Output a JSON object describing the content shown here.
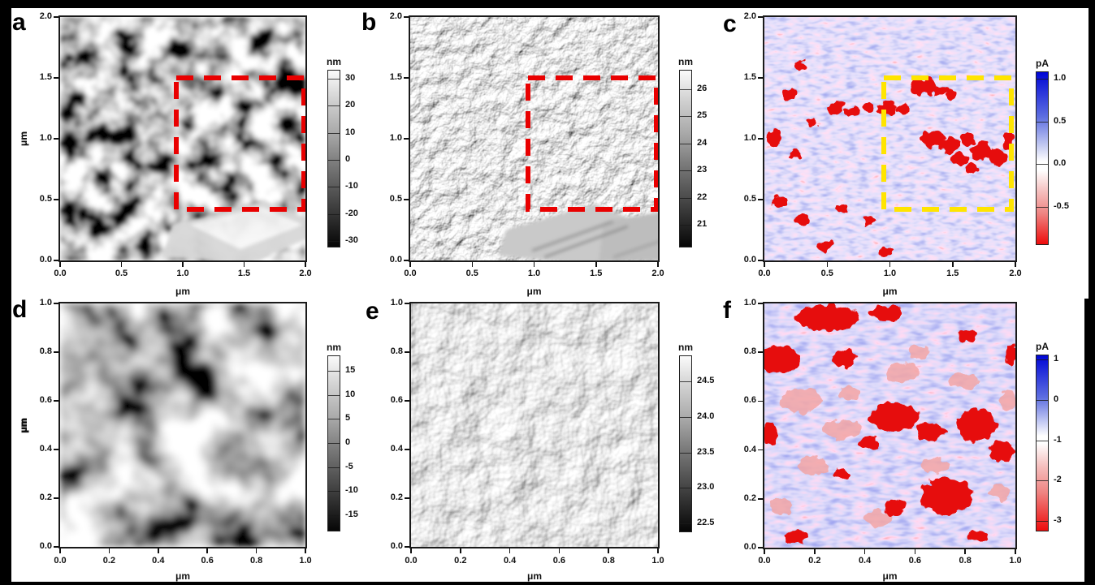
{
  "figure": {
    "background": "#000000",
    "panel_background": "#ffffff",
    "roi_red": "#e90000",
    "roi_yellow": "#ffe400"
  },
  "panels": [
    {
      "id": "a",
      "letter": "a",
      "modality": "topography-grayscale",
      "x_axis": {
        "unit": "μm",
        "ticks": [
          "0.0",
          "0.5",
          "1.0",
          "1.5",
          "2.0"
        ]
      },
      "y_axis": {
        "unit": "μm",
        "ticks": [
          "2.0",
          "1.5",
          "1.0",
          "0.5",
          "0.0"
        ]
      },
      "colorbar": {
        "unit": "nm",
        "ticks": [
          "30",
          "20",
          "10",
          "0",
          "-10",
          "-20",
          "-30"
        ]
      },
      "roi_color": "#e90000"
    },
    {
      "id": "b",
      "letter": "b",
      "modality": "deflection-grayscale",
      "x_axis": {
        "unit": "μm",
        "ticks": [
          "0.0",
          "0.5",
          "1.0",
          "1.5",
          "2.0"
        ]
      },
      "y_axis": {
        "unit": "μm",
        "ticks": [
          "2.0",
          "1.5",
          "1.0",
          "0.5",
          "0.0"
        ]
      },
      "colorbar": {
        "unit": "nm",
        "ticks": [
          "26",
          "25",
          "24",
          "23",
          "22",
          "21"
        ]
      },
      "roi_color": "#e90000"
    },
    {
      "id": "c",
      "letter": "c",
      "modality": "current-map-red-blue",
      "x_axis": {
        "unit": "μm",
        "ticks": [
          "0.0",
          "0.5",
          "1.0",
          "1.5",
          "2.0"
        ]
      },
      "y_axis": {
        "unit": "μm",
        "ticks": [
          "2.0",
          "1.5",
          "1.0",
          "0.5",
          "0.0"
        ]
      },
      "colorbar": {
        "unit": "pA",
        "ticks": [
          "1.0",
          "0.5",
          "0.0",
          "-0.5"
        ]
      },
      "roi_color": "#ffe400"
    },
    {
      "id": "d",
      "letter": "d",
      "modality": "topography-grayscale",
      "x_axis": {
        "unit": "μm",
        "ticks": [
          "0.0",
          "0.2",
          "0.4",
          "0.6",
          "0.8",
          "1.0"
        ]
      },
      "y_axis": {
        "unit": "μm",
        "ticks": [
          "1.0",
          "0.8",
          "0.6",
          "0.4",
          "0.2",
          "0.0"
        ]
      },
      "colorbar": {
        "unit": "nm",
        "ticks": [
          "15",
          "10",
          "5",
          "0",
          "-5",
          "-10",
          "-15"
        ]
      }
    },
    {
      "id": "e",
      "letter": "e",
      "modality": "deflection-grayscale",
      "x_axis": {
        "unit": "μm",
        "ticks": [
          "0.0",
          "0.2",
          "0.4",
          "0.6",
          "0.8",
          "1.0"
        ]
      },
      "y_axis": {
        "unit": "μm",
        "ticks": [
          "1.0",
          "0.8",
          "0.6",
          "0.4",
          "0.2",
          "0.0"
        ]
      },
      "colorbar": {
        "unit": "nm",
        "ticks": [
          "24.5",
          "24.0",
          "23.5",
          "23.0",
          "22.5"
        ]
      }
    },
    {
      "id": "f",
      "letter": "f",
      "modality": "current-map-red-blue",
      "x_axis": {
        "unit": "μm",
        "ticks": [
          "0.0",
          "0.2",
          "0.4",
          "0.6",
          "0.8",
          "1.0"
        ]
      },
      "y_axis": {
        "unit": "μm",
        "ticks": [
          "1.0",
          "0.8",
          "0.6",
          "0.4",
          "0.2",
          "0.0"
        ]
      },
      "colorbar": {
        "unit": "pA",
        "ticks": [
          "1",
          "0",
          "-1",
          "-2",
          "-3"
        ]
      }
    }
  ]
}
